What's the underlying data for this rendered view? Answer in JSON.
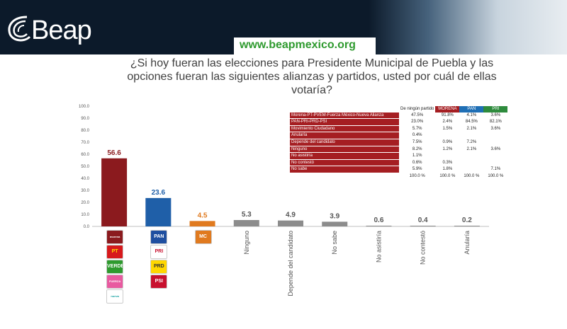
{
  "banner": {
    "brand": "Beap",
    "url": "www.beapmexico.org"
  },
  "title": "¿Si hoy fueran las elecciones para Presidente Municipal de Puebla y las opciones fueran las siguientes alianzas y partidos, usted por cuál de ellas votaría?",
  "chart_data": {
    "type": "bar",
    "categories": [
      "Morena-PT-PVEM-Fuerza México-Nueva Alianza",
      "PAN-PRI-PRD-PSI",
      "Movimiento Ciudadano",
      "Ninguno",
      "Depende del candidato",
      "No sabe",
      "No asistiría",
      "No contestó",
      "Anularía"
    ],
    "tick_labels": [
      "",
      "",
      "",
      "Ninguno",
      "Depende del candidato",
      "No sabe",
      "No asistiría",
      "No contestó",
      "Anularía"
    ],
    "values": [
      56.6,
      23.6,
      4.5,
      5.3,
      4.9,
      3.9,
      0.6,
      0.4,
      0.2
    ],
    "value_labels": [
      "56.6",
      "23.6",
      "4.5",
      "5.3",
      "4.9",
      "3.9",
      "0.6",
      "0.4",
      "0.2"
    ],
    "colors": [
      "#8b1a1e",
      "#1f5fa8",
      "#e07a1f",
      "#8c8c8c",
      "#8c8c8c",
      "#8c8c8c",
      "#8c8c8c",
      "#8c8c8c",
      "#8c8c8c"
    ],
    "ylim": [
      0,
      100
    ],
    "yticks": [
      "0.0",
      "10.0",
      "20.0",
      "30.0",
      "40.0",
      "50.0",
      "60.0",
      "70.0",
      "80.0",
      "90.0",
      "100.0"
    ],
    "grid": false
  },
  "party_logos": {
    "bar1": [
      "morena",
      "PT",
      "VERDE",
      "FUERZA MÉXICO",
      "nueva alianza"
    ],
    "bar2": [
      "PAN",
      "PRI",
      "PRD",
      "PSI"
    ],
    "bar3": [
      "MC"
    ]
  },
  "table": {
    "headers": [
      "De ningún partido",
      "MORENA",
      "PAN",
      "PRI"
    ],
    "rows": [
      {
        "label": "Morena-PT-PVEM-Fuerza México-Nueva Alianza",
        "values": [
          "47.5%",
          "91.8%",
          "4.1%",
          "3.6%"
        ]
      },
      {
        "label": "PAN-PRI-PRD-PSI",
        "values": [
          "23.0%",
          "2.4%",
          "84.5%",
          "82.1%"
        ]
      },
      {
        "label": "Movimiento Ciudadano",
        "values": [
          "5.7%",
          "1.5%",
          "2.1%",
          "3.6%"
        ]
      },
      {
        "label": "Anularía",
        "values": [
          "0.4%",
          "",
          "",
          ""
        ]
      },
      {
        "label": "Depende del candidato",
        "values": [
          "7.5%",
          "0.9%",
          "7.2%",
          ""
        ]
      },
      {
        "label": "Ninguno",
        "values": [
          "8.2%",
          "1.2%",
          "2.1%",
          "3.6%"
        ]
      },
      {
        "label": "No asistiría",
        "values": [
          "1.1%",
          "",
          "",
          ""
        ]
      },
      {
        "label": "No contestó",
        "values": [
          "0.6%",
          "0.3%",
          "",
          ""
        ]
      },
      {
        "label": "No sabe",
        "values": [
          "5.9%",
          "1.8%",
          "",
          "7.1%"
        ]
      }
    ],
    "totals": [
      "100.0 %",
      "100.0 %",
      "100.0 %",
      "100.0 %"
    ]
  }
}
